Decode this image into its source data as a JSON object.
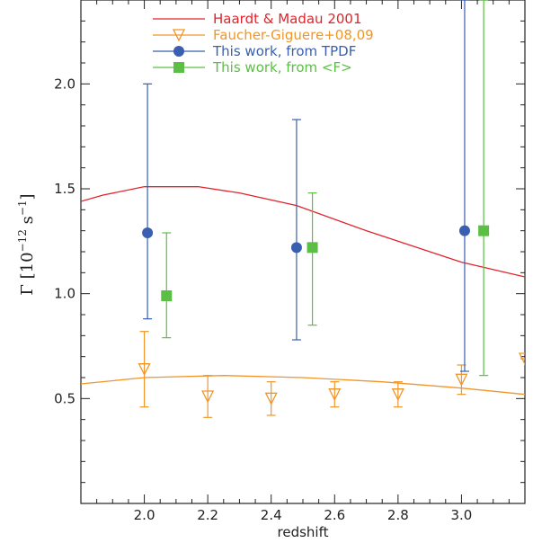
{
  "chart_data": {
    "type": "scatter",
    "title": "",
    "xlabel": "redshift",
    "ylabel": "Γ [10^-12 s^-1]",
    "xlim": [
      1.8,
      3.2
    ],
    "ylim": [
      0.0,
      2.4
    ],
    "x_ticks": [
      2.0,
      2.2,
      2.4,
      2.6,
      2.8,
      3.0
    ],
    "x_tick_labels": [
      "2.0",
      "2.2",
      "2.4",
      "2.6",
      "2.8",
      "3.0"
    ],
    "y_ticks": [
      0.5,
      1.0,
      1.5,
      2.0
    ],
    "y_tick_labels": [
      "0.5",
      "1.0",
      "1.5",
      "2.0"
    ],
    "grid": false,
    "legend_position": "top-center",
    "series": [
      {
        "name": "Haardt & Madau 2001",
        "kind": "line",
        "color": "#e0242b",
        "x": [
          1.8,
          1.87,
          2.0,
          2.17,
          2.3,
          2.48,
          2.7,
          3.0,
          3.2
        ],
        "y": [
          1.44,
          1.47,
          1.51,
          1.51,
          1.48,
          1.42,
          1.3,
          1.15,
          1.08
        ]
      },
      {
        "name": "",
        "kind": "line",
        "color": "#f0962a",
        "x": [
          1.8,
          2.0,
          2.25,
          2.5,
          2.75,
          3.0,
          3.2
        ],
        "y": [
          0.57,
          0.6,
          0.61,
          0.6,
          0.58,
          0.55,
          0.52
        ]
      },
      {
        "name": "Faucher-Giguere+08,09",
        "kind": "points",
        "marker": "triangle-down-open",
        "color": "#f0962a",
        "x": [
          2.0,
          2.2,
          2.4,
          2.6,
          2.8,
          3.0,
          3.2
        ],
        "y": [
          0.64,
          0.51,
          0.5,
          0.52,
          0.52,
          0.59,
          0.69
        ],
        "y_low": [
          0.46,
          0.41,
          0.42,
          0.46,
          0.46,
          0.52,
          0.69
        ],
        "y_high": [
          0.82,
          0.61,
          0.58,
          0.58,
          0.58,
          0.66,
          0.69
        ]
      },
      {
        "name": "This work, from TPDF",
        "kind": "points",
        "marker": "circle-filled",
        "color": "#3a5fb0",
        "x": [
          2.01,
          2.48,
          3.01
        ],
        "y": [
          1.29,
          1.22,
          1.3
        ],
        "y_low": [
          0.88,
          0.78,
          0.63
        ],
        "y_high": [
          2.0,
          1.83,
          2.4
        ]
      },
      {
        "name": "This work, from <F>",
        "kind": "points",
        "marker": "square-filled",
        "color": "#5cbf45",
        "x": [
          2.07,
          2.53,
          3.07
        ],
        "y": [
          0.99,
          1.22,
          1.3
        ],
        "y_low": [
          0.79,
          0.85,
          0.61
        ],
        "y_high": [
          1.29,
          1.48,
          2.4
        ]
      }
    ]
  },
  "legend": [
    {
      "label": "Haardt & Madau 2001",
      "color": "#e0242b",
      "symbol": "line"
    },
    {
      "label": "Faucher-Giguere+08,09",
      "color": "#f0962a",
      "symbol": "triangle-down-open"
    },
    {
      "label": "This work, from TPDF",
      "color": "#3a5fb0",
      "symbol": "circle-filled"
    },
    {
      "label": "This work, from <F>",
      "color": "#5cbf45",
      "symbol": "square-filled"
    }
  ]
}
